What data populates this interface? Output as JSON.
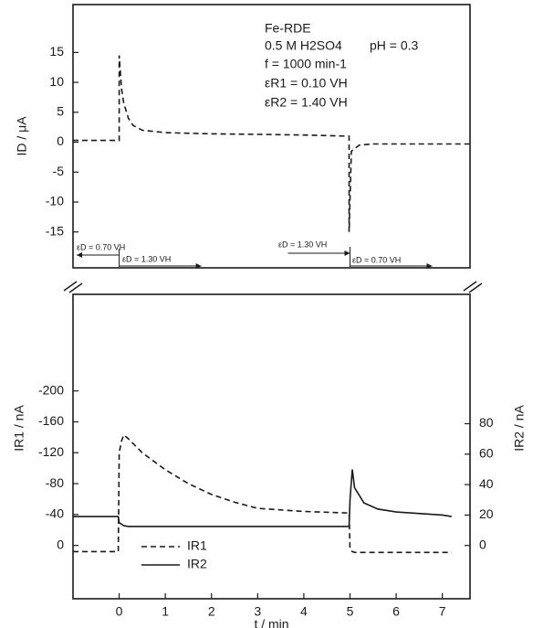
{
  "chart_data": [
    {
      "type": "line",
      "ylabel": "ID / μA",
      "xlim": [
        -1,
        7.6
      ],
      "ylim": [
        -21,
        23
      ],
      "yticks": [
        -15,
        -10,
        -5,
        0,
        5,
        10,
        15
      ],
      "x": [
        -1,
        0,
        0,
        0.05,
        0.1,
        0.2,
        0.3,
        0.5,
        1,
        2,
        3,
        4,
        4.98,
        4.98,
        5.03,
        5.2,
        5.5,
        7.6
      ],
      "series": [
        {
          "name": "ID",
          "color": "#1a1a1a",
          "dash": "dashed",
          "values": [
            0.3,
            0.3,
            14.5,
            9,
            6.5,
            4,
            2.8,
            2,
            1.6,
            1.4,
            1.3,
            1.2,
            1.0,
            -15,
            -1.5,
            -0.5,
            -0.3,
            -0.3
          ]
        }
      ],
      "annotations": [
        "Fe-RDE",
        "0.5 M H2SO4",
        "pH = 0.3",
        "f = 1000 min-1",
        "εR1 = 0.10 VH",
        "εR2 = 1.40 VH"
      ],
      "step_labels": [
        "εD = 0.70 VH",
        "εD = 1.30 VH",
        "εD = 1.30 VH",
        "εD = 0.70 VH"
      ]
    },
    {
      "type": "line",
      "xlabel": "t / min",
      "ylabel": "IR1 / nA",
      "y2label": "IR2 / nA",
      "xlim": [
        -1,
        7.6
      ],
      "xticks": [
        0,
        1,
        2,
        3,
        4,
        5,
        6,
        7
      ],
      "ylim": [
        69,
        -325
      ],
      "yticks": [
        0,
        -40,
        -80,
        -120,
        -160,
        -200
      ],
      "y2lim": [
        -35,
        165
      ],
      "y2ticks": [
        0,
        20,
        40,
        60,
        80
      ],
      "legend": "lower left",
      "x": [
        -1,
        -0.02,
        0,
        0.05,
        0.1,
        0.2,
        0.5,
        1,
        1.5,
        2,
        2.5,
        3,
        4,
        4.98,
        5,
        5.05,
        5.1,
        5.3,
        5.6,
        6,
        7,
        7.2
      ],
      "series": [
        {
          "name": "IR1",
          "color": "#1a1a1a",
          "dash": "dashed",
          "values": [
            8,
            8,
            -120,
            -135,
            -143,
            -138,
            -120,
            -98,
            -80,
            -66,
            -56,
            -48,
            -44,
            -42,
            5,
            8,
            9,
            9,
            9,
            9,
            9,
            9
          ]
        },
        {
          "name": "IR2",
          "color": "#1a1a1a",
          "dash": "solid",
          "axis": "y2",
          "values": [
            19,
            19,
            15,
            14,
            13,
            12.5,
            12.5,
            12.5,
            12.5,
            12.5,
            12.5,
            12.5,
            12.5,
            12.5,
            30,
            50,
            38,
            28,
            24,
            22,
            20,
            19
          ]
        }
      ]
    }
  ]
}
